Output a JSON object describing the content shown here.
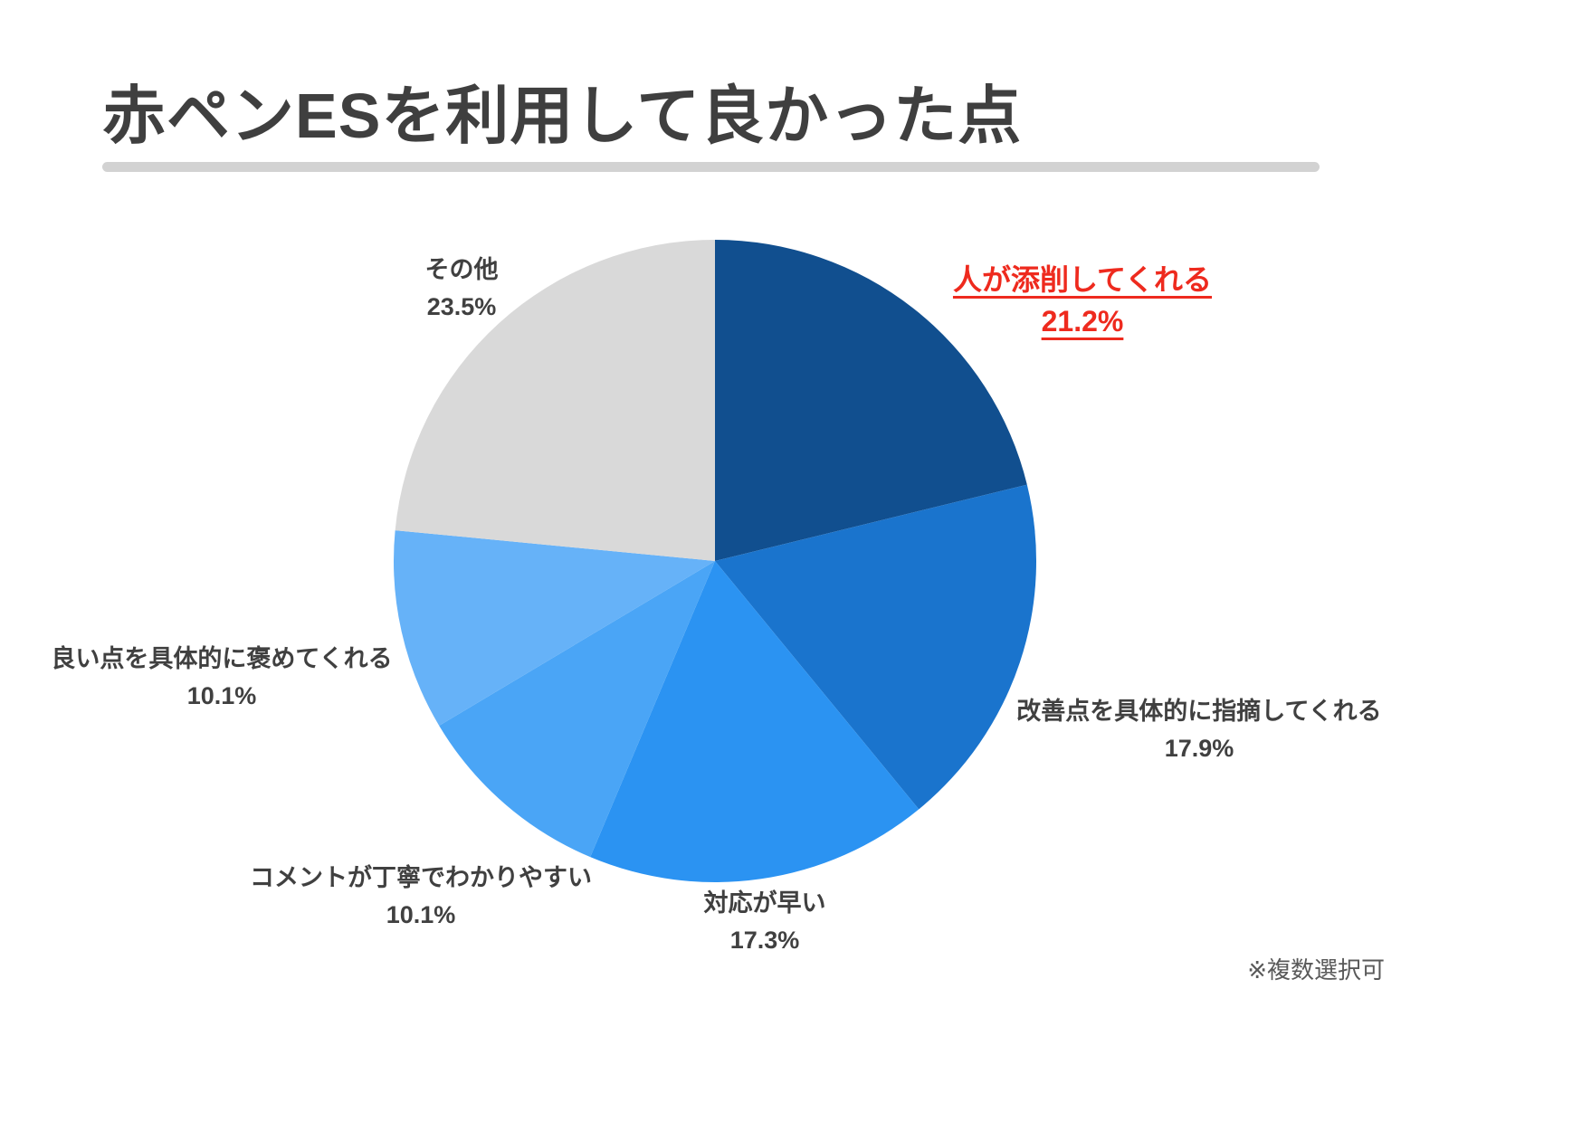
{
  "page": {
    "title": "赤ペンESを利用して良かった点",
    "footnote": "※複数選択可"
  },
  "chart_data": {
    "type": "pie",
    "title": "赤ペンESを利用して良かった点",
    "start_angle_deg": 0,
    "direction": "clockwise",
    "legend": "none",
    "annotation": "※複数選択可",
    "highlight_text_color": "#ee2a1e",
    "slices": [
      {
        "label": "人が添削してくれる",
        "value": 21.2,
        "percent_label": "21.2%",
        "color": "#114f8f",
        "highlighted": true
      },
      {
        "label": "改善点を具体的に指摘してくれる",
        "value": 17.9,
        "percent_label": "17.9%",
        "color": "#1a74cd",
        "highlighted": false
      },
      {
        "label": "対応が早い",
        "value": 17.3,
        "percent_label": "17.3%",
        "color": "#2b93f2",
        "highlighted": false
      },
      {
        "label": "コメントが丁寧でわかりやすい",
        "value": 10.1,
        "percent_label": "10.1%",
        "color": "#4aa5f6",
        "highlighted": false
      },
      {
        "label": "良い点を具体的に褒めてくれる",
        "value": 10.1,
        "percent_label": "10.1%",
        "color": "#66b2f8",
        "highlighted": false
      },
      {
        "label": "その他",
        "value": 23.5,
        "percent_label": "23.5%",
        "color": "#d9d9d9",
        "highlighted": false
      }
    ]
  }
}
